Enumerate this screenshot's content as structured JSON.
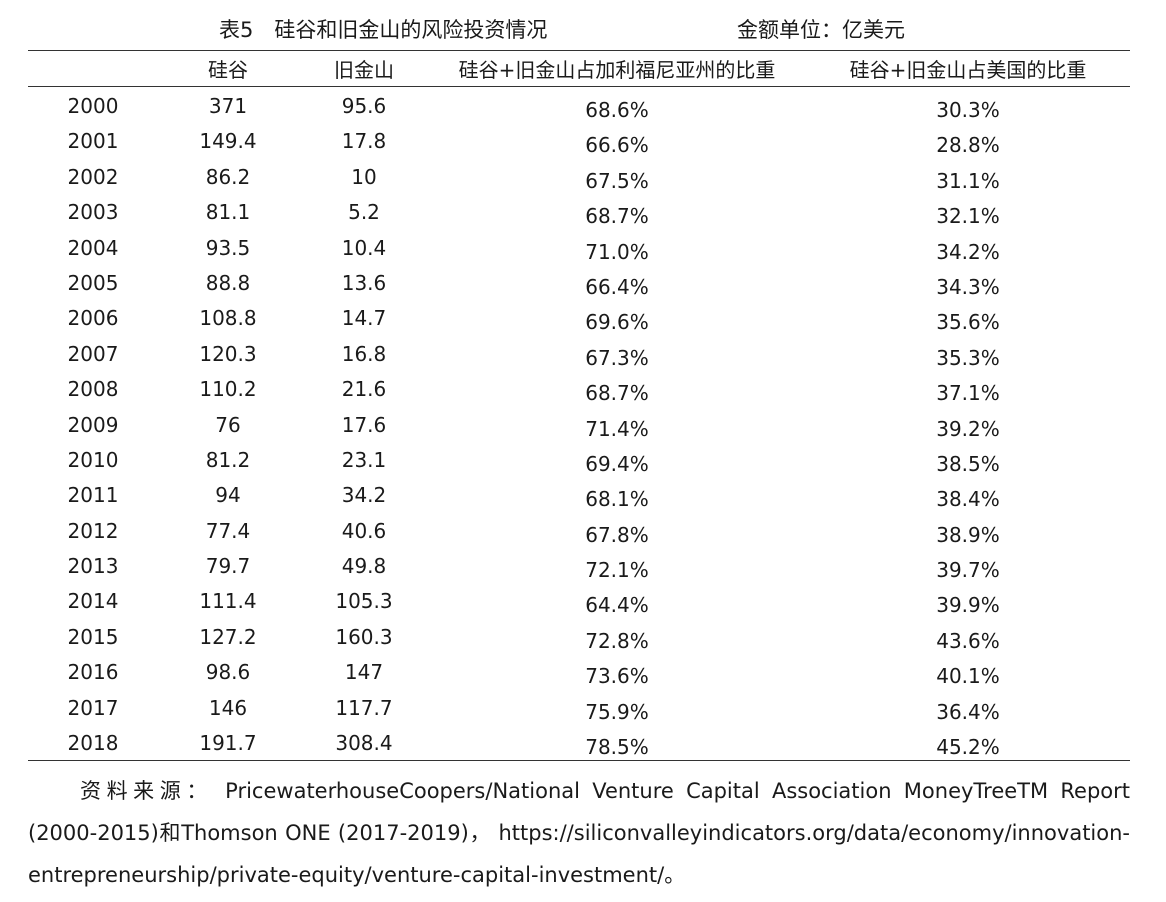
{
  "title": "表5　硅谷和旧金山的风险投资情况",
  "unit": "金额单位：亿美元",
  "headers": {
    "year": "",
    "silicon_valley": "硅谷",
    "san_francisco": "旧金山",
    "share_california": "硅谷+旧金山占加利福尼亚州的比重",
    "share_us": "硅谷+旧金山占美国的比重"
  },
  "rows": [
    {
      "year": "2000",
      "sv": "371",
      "sf": "95.6",
      "ca": "68.6%",
      "us": "30.3%"
    },
    {
      "year": "2001",
      "sv": "149.4",
      "sf": "17.8",
      "ca": "66.6%",
      "us": "28.8%"
    },
    {
      "year": "2002",
      "sv": "86.2",
      "sf": "10",
      "ca": "67.5%",
      "us": "31.1%"
    },
    {
      "year": "2003",
      "sv": "81.1",
      "sf": "5.2",
      "ca": "68.7%",
      "us": "32.1%"
    },
    {
      "year": "2004",
      "sv": "93.5",
      "sf": "10.4",
      "ca": "71.0%",
      "us": "34.2%"
    },
    {
      "year": "2005",
      "sv": "88.8",
      "sf": "13.6",
      "ca": "66.4%",
      "us": "34.3%"
    },
    {
      "year": "2006",
      "sv": "108.8",
      "sf": "14.7",
      "ca": "69.6%",
      "us": "35.6%"
    },
    {
      "year": "2007",
      "sv": "120.3",
      "sf": "16.8",
      "ca": "67.3%",
      "us": "35.3%"
    },
    {
      "year": "2008",
      "sv": "110.2",
      "sf": "21.6",
      "ca": "68.7%",
      "us": "37.1%"
    },
    {
      "year": "2009",
      "sv": "76",
      "sf": "17.6",
      "ca": "71.4%",
      "us": "39.2%"
    },
    {
      "year": "2010",
      "sv": "81.2",
      "sf": "23.1",
      "ca": "69.4%",
      "us": "38.5%"
    },
    {
      "year": "2011",
      "sv": "94",
      "sf": "34.2",
      "ca": "68.1%",
      "us": "38.4%"
    },
    {
      "year": "2012",
      "sv": "77.4",
      "sf": "40.6",
      "ca": "67.8%",
      "us": "38.9%"
    },
    {
      "year": "2013",
      "sv": "79.7",
      "sf": "49.8",
      "ca": "72.1%",
      "us": "39.7%"
    },
    {
      "year": "2014",
      "sv": "111.4",
      "sf": "105.3",
      "ca": "64.4%",
      "us": "39.9%"
    },
    {
      "year": "2015",
      "sv": "127.2",
      "sf": "160.3",
      "ca": "72.8%",
      "us": "43.6%"
    },
    {
      "year": "2016",
      "sv": "98.6",
      "sf": "147",
      "ca": "73.6%",
      "us": "40.1%"
    },
    {
      "year": "2017",
      "sv": "146",
      "sf": "117.7",
      "ca": "75.9%",
      "us": "36.4%"
    },
    {
      "year": "2018",
      "sv": "191.7",
      "sf": "308.4",
      "ca": "78.5%",
      "us": "45.2%"
    }
  ],
  "source": "资料来源： PricewaterhouseCoopers/National Venture Capital Association MoneyTreeTM Report (2000-2015)和Thomson ONE (2017-2019)， https://siliconvalleyindicators.org/data/economy/innovation-entrepreneurship/private-equity/venture-capital-investment/。"
}
